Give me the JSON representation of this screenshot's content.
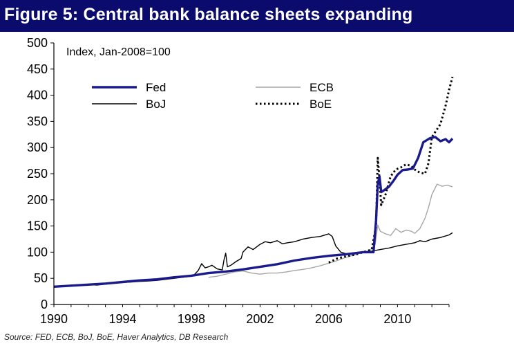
{
  "title": "Figure 5: Central bank balance sheets expanding",
  "source": "Source: FED, ECB, BoJ, BoE, Haver Analytics, DB Research",
  "colors": {
    "title_bg": "#0b0b6e",
    "fed": "#1a1a8c",
    "ecb": "#a6a6a6",
    "boj": "#000000",
    "boe": "#000000"
  },
  "chart_data": {
    "type": "line",
    "annotation": "Index, Jan-2008=100",
    "xlabel": "",
    "ylabel": "",
    "xlim": [
      1990,
      2013
    ],
    "ylim": [
      0,
      500
    ],
    "x_ticks": [
      "1990",
      "1994",
      "1998",
      "2002",
      "2006",
      "2010"
    ],
    "y_ticks": [
      "0",
      "50",
      "100",
      "150",
      "200",
      "250",
      "300",
      "350",
      "400",
      "450",
      "500"
    ],
    "grid": false,
    "legend_position": "top-left",
    "series": [
      {
        "name": "Fed",
        "color": "#1a1a8c",
        "style": "thick",
        "points": [
          [
            1990,
            34
          ],
          [
            1991,
            36
          ],
          [
            1992,
            38
          ],
          [
            1993,
            40
          ],
          [
            1994,
            43
          ],
          [
            1995,
            46
          ],
          [
            1996,
            48
          ],
          [
            1997,
            52
          ],
          [
            1998,
            55
          ],
          [
            1999,
            60
          ],
          [
            2000,
            63
          ],
          [
            2001,
            67
          ],
          [
            2002,
            72
          ],
          [
            2003,
            77
          ],
          [
            2004,
            84
          ],
          [
            2005,
            89
          ],
          [
            2006,
            93
          ],
          [
            2007,
            96
          ],
          [
            2008.0,
            100
          ],
          [
            2008.6,
            100
          ],
          [
            2008.75,
            160
          ],
          [
            2008.85,
            230
          ],
          [
            2008.95,
            245
          ],
          [
            2009.05,
            215
          ],
          [
            2009.2,
            218
          ],
          [
            2009.5,
            225
          ],
          [
            2009.8,
            238
          ],
          [
            2010.0,
            248
          ],
          [
            2010.3,
            257
          ],
          [
            2010.6,
            258
          ],
          [
            2010.9,
            260
          ],
          [
            2011.2,
            280
          ],
          [
            2011.5,
            310
          ],
          [
            2011.9,
            318
          ],
          [
            2012.2,
            320
          ],
          [
            2012.5,
            312
          ],
          [
            2012.8,
            316
          ],
          [
            2013.0,
            310
          ],
          [
            2013.2,
            317
          ]
        ]
      },
      {
        "name": "ECB",
        "color": "#a6a6a6",
        "style": "thin",
        "points": [
          [
            1999.0,
            52
          ],
          [
            1999.5,
            54
          ],
          [
            2000,
            58
          ],
          [
            2000.5,
            62
          ],
          [
            2001,
            64
          ],
          [
            2001.5,
            60
          ],
          [
            2002,
            58
          ],
          [
            2002.5,
            60
          ],
          [
            2003,
            60
          ],
          [
            2003.5,
            62
          ],
          [
            2004,
            65
          ],
          [
            2004.5,
            67
          ],
          [
            2005,
            70
          ],
          [
            2005.5,
            74
          ],
          [
            2006,
            79
          ],
          [
            2006.5,
            84
          ],
          [
            2007,
            90
          ],
          [
            2007.5,
            95
          ],
          [
            2008.0,
            100
          ],
          [
            2008.4,
            103
          ],
          [
            2008.7,
            115
          ],
          [
            2008.85,
            152
          ],
          [
            2009.0,
            140
          ],
          [
            2009.3,
            135
          ],
          [
            2009.6,
            132
          ],
          [
            2009.9,
            145
          ],
          [
            2010.2,
            138
          ],
          [
            2010.5,
            142
          ],
          [
            2010.8,
            140
          ],
          [
            2011.0,
            136
          ],
          [
            2011.3,
            145
          ],
          [
            2011.6,
            165
          ],
          [
            2011.8,
            185
          ],
          [
            2012.0,
            210
          ],
          [
            2012.3,
            230
          ],
          [
            2012.6,
            226
          ],
          [
            2012.9,
            228
          ],
          [
            2013.2,
            225
          ]
        ]
      },
      {
        "name": "BoJ",
        "color": "#000000",
        "style": "thin",
        "points": [
          [
            1990,
            33
          ],
          [
            1990.5,
            35
          ],
          [
            1991,
            37
          ],
          [
            1991.5,
            36
          ],
          [
            1992,
            38
          ],
          [
            1992.5,
            37
          ],
          [
            1993,
            39
          ],
          [
            1993.5,
            41
          ],
          [
            1994,
            42
          ],
          [
            1994.5,
            43
          ],
          [
            1995,
            44
          ],
          [
            1995.5,
            45
          ],
          [
            1996,
            46
          ],
          [
            1996.5,
            48
          ],
          [
            1997,
            50
          ],
          [
            1997.5,
            52
          ],
          [
            1998,
            54
          ],
          [
            1998.2,
            58
          ],
          [
            1998.4,
            65
          ],
          [
            1998.6,
            78
          ],
          [
            1998.8,
            70
          ],
          [
            1999,
            72
          ],
          [
            1999.2,
            75
          ],
          [
            1999.5,
            68
          ],
          [
            1999.8,
            66
          ],
          [
            1999.9,
            85
          ],
          [
            2000,
            98
          ],
          [
            2000.1,
            72
          ],
          [
            2000.3,
            75
          ],
          [
            2000.6,
            82
          ],
          [
            2000.9,
            88
          ],
          [
            2001,
            100
          ],
          [
            2001.3,
            110
          ],
          [
            2001.6,
            105
          ],
          [
            2002,
            115
          ],
          [
            2002.3,
            120
          ],
          [
            2002.6,
            118
          ],
          [
            2003,
            122
          ],
          [
            2003.3,
            116
          ],
          [
            2003.6,
            118
          ],
          [
            2004,
            120
          ],
          [
            2004.5,
            125
          ],
          [
            2005,
            128
          ],
          [
            2005.5,
            130
          ],
          [
            2006,
            135
          ],
          [
            2006.2,
            130
          ],
          [
            2006.4,
            112
          ],
          [
            2006.7,
            100
          ],
          [
            2007,
            97
          ],
          [
            2007.5,
            98
          ],
          [
            2008,
            100
          ],
          [
            2008.5,
            102
          ],
          [
            2009,
            105
          ],
          [
            2009.5,
            108
          ],
          [
            2010,
            112
          ],
          [
            2010.5,
            115
          ],
          [
            2011,
            118
          ],
          [
            2011.3,
            122
          ],
          [
            2011.6,
            120
          ],
          [
            2012,
            125
          ],
          [
            2012.5,
            128
          ],
          [
            2013,
            133
          ],
          [
            2013.2,
            137
          ]
        ]
      },
      {
        "name": "BoE",
        "color": "#000000",
        "style": "dotted",
        "points": [
          [
            2006,
            80
          ],
          [
            2006.5,
            88
          ],
          [
            2007,
            92
          ],
          [
            2007.5,
            95
          ],
          [
            2008,
            100
          ],
          [
            2008.5,
            105
          ],
          [
            2008.75,
            150
          ],
          [
            2008.85,
            280
          ],
          [
            2008.95,
            240
          ],
          [
            2009.05,
            190
          ],
          [
            2009.3,
            210
          ],
          [
            2009.6,
            245
          ],
          [
            2009.9,
            258
          ],
          [
            2010.2,
            262
          ],
          [
            2010.5,
            268
          ],
          [
            2010.8,
            265
          ],
          [
            2011.0,
            258
          ],
          [
            2011.3,
            252
          ],
          [
            2011.6,
            250
          ],
          [
            2011.8,
            270
          ],
          [
            2012.0,
            320
          ],
          [
            2012.2,
            330
          ],
          [
            2012.5,
            345
          ],
          [
            2012.8,
            380
          ],
          [
            2013.0,
            410
          ],
          [
            2013.2,
            435
          ]
        ]
      }
    ]
  }
}
